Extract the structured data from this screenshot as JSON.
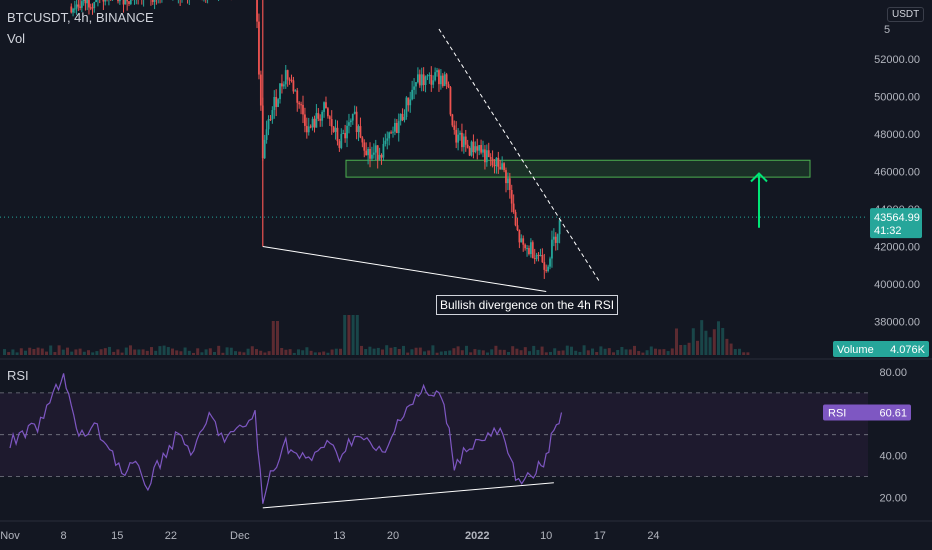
{
  "header": {
    "symbol": "BTCUSDT, 4h, BINANCE",
    "vol_label": "Vol",
    "currency": "USDT"
  },
  "annotation": {
    "text": "Bullish divergence on the 4h RSI"
  },
  "colors": {
    "up": "#26a69a",
    "down": "#ef5350",
    "accent_green": "#00e676",
    "rsi": "#7e57c2",
    "bg": "#131722"
  },
  "chart_data": [
    {
      "type": "candlestick",
      "title": "BTCUSDT, 4h, BINANCE",
      "ylim": [
        36000,
        56000
      ],
      "y_ticks": [
        "52000.00",
        "50000.00",
        "48000.00",
        "46000.00",
        "44000.00",
        "42000.00",
        "40000.00",
        "38000.00"
      ],
      "x_ticks": [
        "Nov",
        "8",
        "15",
        "22",
        "Dec",
        "13",
        "20",
        "2022",
        "10",
        "17",
        "24"
      ],
      "grid": false,
      "price_path": [
        [
          "Nov 9",
          54800
        ],
        [
          "Nov 12",
          55200
        ],
        [
          "Dec 3",
          56000
        ],
        [
          "Dec 4",
          47000
        ],
        [
          "Dec 5",
          49000
        ],
        [
          "Dec 7",
          51300
        ],
        [
          "Dec 8",
          50500
        ],
        [
          "Dec 10",
          48200
        ],
        [
          "Dec 12",
          49300
        ],
        [
          "Dec 14",
          47500
        ],
        [
          "Dec 16",
          48800
        ],
        [
          "Dec 18",
          46800
        ],
        [
          "Dec 20",
          47300
        ],
        [
          "Dec 22",
          48800
        ],
        [
          "Dec 24",
          50800
        ],
        [
          "Dec 26",
          50900
        ],
        [
          "Dec 27",
          51100
        ],
        [
          "Dec 28",
          50800
        ],
        [
          "Dec 29",
          47900
        ],
        [
          "Dec 31",
          47200
        ],
        [
          "Jan 1",
          47400
        ],
        [
          "Jan 3",
          46300
        ],
        [
          "Jan 4",
          46400
        ],
        [
          "Jan 5",
          45500
        ],
        [
          "Jan 6",
          43000
        ],
        [
          "Jan 7",
          41800
        ],
        [
          "Jan 8",
          41900
        ],
        [
          "Jan 9",
          41600
        ],
        [
          "Jan 10",
          41000
        ],
        [
          "Jan 11",
          42300
        ],
        [
          "Jan 12",
          43565
        ]
      ],
      "current_price": "43564.99",
      "countdown": "41:32",
      "volume_label": "Volume",
      "volume_value": "4.076K",
      "resistance_zone": [
        45700,
        46600
      ],
      "trendlines": [
        {
          "name": "downtrend",
          "from": [
            "Dec 27",
            53600
          ],
          "to": [
            "Jan 17",
            40100
          ]
        },
        {
          "name": "price-lower-lows",
          "from": [
            "Dec 4",
            42000
          ],
          "to": [
            "Jan 10",
            39600
          ]
        }
      ],
      "arrow_target": 46000
    },
    {
      "type": "line",
      "title": "RSI",
      "ylim": [
        10,
        90
      ],
      "y_ticks": [
        "80.00",
        "40.00",
        "20.00"
      ],
      "levels": [
        30,
        50,
        70
      ],
      "current_value": "60.61",
      "value_label": "RSI",
      "values": [
        [
          "Nov 1",
          46
        ],
        [
          "Nov 5",
          55
        ],
        [
          "Nov 7",
          72
        ],
        [
          "Nov 8",
          79
        ],
        [
          "Nov 9",
          63
        ],
        [
          "Nov 10",
          48
        ],
        [
          "Nov 12",
          54
        ],
        [
          "Nov 14",
          44
        ],
        [
          "Nov 16",
          30
        ],
        [
          "Nov 17",
          36
        ],
        [
          "Nov 19",
          26
        ],
        [
          "Nov 21",
          40
        ],
        [
          "Nov 23",
          50
        ],
        [
          "Nov 25",
          41
        ],
        [
          "Nov 27",
          59
        ],
        [
          "Nov 29",
          48
        ],
        [
          "Dec 1",
          52
        ],
        [
          "Dec 3",
          60
        ],
        [
          "Dec 4",
          16
        ],
        [
          "Dec 5",
          32
        ],
        [
          "Dec 7",
          46
        ],
        [
          "Dec 8",
          41
        ],
        [
          "Dec 10",
          37
        ],
        [
          "Dec 12",
          46
        ],
        [
          "Dec 14",
          40
        ],
        [
          "Dec 16",
          50
        ],
        [
          "Dec 18",
          45
        ],
        [
          "Dec 20",
          40
        ],
        [
          "Dec 22",
          60
        ],
        [
          "Dec 24",
          68
        ],
        [
          "Dec 25",
          71
        ],
        [
          "Dec 26",
          68
        ],
        [
          "Dec 27",
          70
        ],
        [
          "Dec 28",
          58
        ],
        [
          "Dec 29",
          36
        ],
        [
          "Dec 31",
          45
        ],
        [
          "Jan 2",
          48
        ],
        [
          "Jan 4",
          52
        ],
        [
          "Jan 5",
          40
        ],
        [
          "Jan 6",
          31
        ],
        [
          "Jan 8",
          28
        ],
        [
          "Jan 9",
          34
        ],
        [
          "Jan 10",
          38
        ],
        [
          "Jan 11",
          53
        ],
        [
          "Jan 12",
          60.61
        ]
      ],
      "trendline": {
        "from": [
          "Dec 4",
          15
        ],
        "to": [
          "Jan 11",
          27
        ]
      }
    }
  ]
}
